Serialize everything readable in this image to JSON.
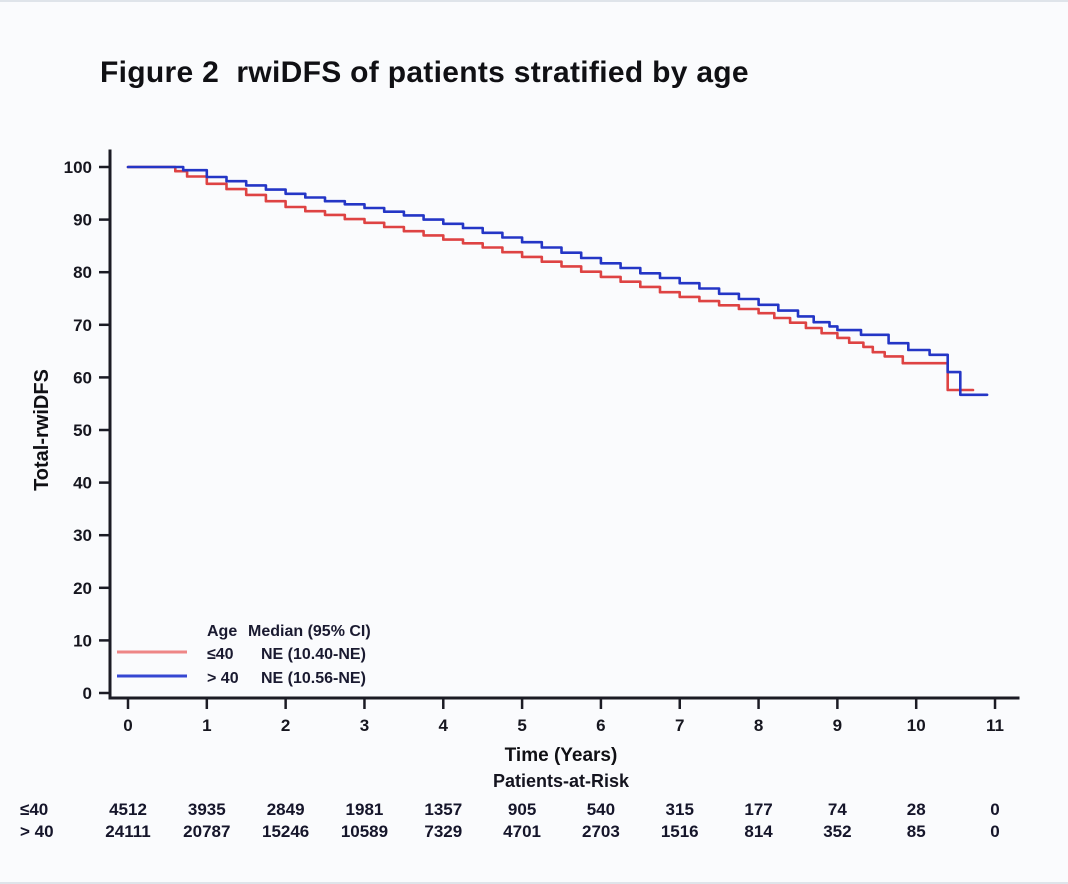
{
  "figure": {
    "title": "Figure 2  rwiDFS of patients stratified by age"
  },
  "chart_data": {
    "type": "line",
    "subtype": "kaplan-meier-step",
    "title": "Figure 2 rwiDFS of patients stratified by age",
    "xlabel": "Time (Years)",
    "ylabel": "Total-rwiDFS",
    "xlim": [
      0,
      11
    ],
    "ylim": [
      0,
      100
    ],
    "x_ticks": [
      0,
      1,
      2,
      3,
      4,
      5,
      6,
      7,
      8,
      9,
      10,
      11
    ],
    "y_ticks": [
      0,
      10,
      20,
      30,
      40,
      50,
      60,
      70,
      80,
      90,
      100
    ],
    "grid": false,
    "legend": {
      "position": "inside-bottom-left",
      "col1_header": "Age",
      "col2_header": "Median (95% CI)",
      "rows": [
        {
          "label": "≤40",
          "median": "NE (10.40-NE)",
          "swatch_color": "#ee8686"
        },
        {
          "label": "> 40",
          "median": "NE (10.56-NE)",
          "swatch_color": "#3547d2"
        }
      ]
    },
    "series": [
      {
        "id": "le40",
        "name": "≤40",
        "color": "#de4343",
        "points": [
          [
            0,
            100
          ],
          [
            0.5,
            100
          ],
          [
            0.6,
            99.2
          ],
          [
            0.75,
            98.2
          ],
          [
            1.0,
            96.8
          ],
          [
            1.25,
            95.8
          ],
          [
            1.5,
            94.7
          ],
          [
            1.75,
            93.5
          ],
          [
            2.0,
            92.4
          ],
          [
            2.25,
            91.6
          ],
          [
            2.5,
            90.9
          ],
          [
            2.75,
            90.1
          ],
          [
            3.0,
            89.4
          ],
          [
            3.25,
            88.6
          ],
          [
            3.5,
            87.8
          ],
          [
            3.75,
            87.0
          ],
          [
            4.0,
            86.2
          ],
          [
            4.25,
            85.5
          ],
          [
            4.5,
            84.7
          ],
          [
            4.75,
            83.8
          ],
          [
            5.0,
            82.9
          ],
          [
            5.25,
            82.0
          ],
          [
            5.5,
            81.1
          ],
          [
            5.75,
            80.1
          ],
          [
            6.0,
            79.1
          ],
          [
            6.25,
            78.2
          ],
          [
            6.5,
            77.2
          ],
          [
            6.75,
            76.2
          ],
          [
            7.0,
            75.3
          ],
          [
            7.25,
            74.5
          ],
          [
            7.5,
            73.7
          ],
          [
            7.75,
            73.0
          ],
          [
            8.0,
            72.2
          ],
          [
            8.2,
            71.3
          ],
          [
            8.4,
            70.4
          ],
          [
            8.6,
            69.4
          ],
          [
            8.8,
            68.4
          ],
          [
            9.0,
            67.5
          ],
          [
            9.15,
            66.6
          ],
          [
            9.33,
            65.8
          ],
          [
            9.45,
            64.8
          ],
          [
            9.6,
            64.0
          ],
          [
            9.83,
            62.7
          ],
          [
            10.4,
            57.6
          ],
          [
            10.72,
            57.6
          ]
        ]
      },
      {
        "id": "gt40",
        "name": "> 40",
        "color": "#2436c6",
        "points": [
          [
            0,
            100
          ],
          [
            0.55,
            100
          ],
          [
            0.7,
            99.4
          ],
          [
            1.0,
            98.1
          ],
          [
            1.25,
            97.3
          ],
          [
            1.5,
            96.5
          ],
          [
            1.75,
            95.7
          ],
          [
            2.0,
            94.9
          ],
          [
            2.25,
            94.2
          ],
          [
            2.5,
            93.5
          ],
          [
            2.75,
            92.9
          ],
          [
            3.0,
            92.2
          ],
          [
            3.25,
            91.5
          ],
          [
            3.5,
            90.8
          ],
          [
            3.75,
            90.0
          ],
          [
            4.0,
            89.2
          ],
          [
            4.25,
            88.4
          ],
          [
            4.5,
            87.5
          ],
          [
            4.75,
            86.6
          ],
          [
            5.0,
            85.7
          ],
          [
            5.25,
            84.7
          ],
          [
            5.5,
            83.7
          ],
          [
            5.75,
            82.7
          ],
          [
            6.0,
            81.7
          ],
          [
            6.25,
            80.8
          ],
          [
            6.5,
            79.8
          ],
          [
            6.75,
            78.9
          ],
          [
            7.0,
            77.9
          ],
          [
            7.25,
            76.9
          ],
          [
            7.5,
            75.9
          ],
          [
            7.75,
            74.9
          ],
          [
            8.0,
            73.8
          ],
          [
            8.25,
            72.7
          ],
          [
            8.5,
            71.6
          ],
          [
            8.7,
            70.5
          ],
          [
            8.9,
            69.7
          ],
          [
            9.0,
            69.0
          ],
          [
            9.3,
            68.1
          ],
          [
            9.65,
            66.5
          ],
          [
            9.9,
            65.2
          ],
          [
            10.17,
            64.3
          ],
          [
            10.4,
            61.0
          ],
          [
            10.56,
            56.7
          ],
          [
            10.9,
            56.7
          ]
        ]
      }
    ],
    "risk_table": {
      "header": "Patients-at-Risk",
      "time_points": [
        0,
        1,
        2,
        3,
        4,
        5,
        6,
        7,
        8,
        9,
        10,
        11
      ],
      "rows": [
        {
          "label": "≤40",
          "values": [
            "4512",
            "3935",
            "2849",
            "1981",
            "1357",
            "905",
            "540",
            "315",
            "177",
            "74",
            "28",
            "0"
          ]
        },
        {
          "label": "> 40",
          "values": [
            "24111",
            "20787",
            "15246",
            "10589",
            "7329",
            "4701",
            "2703",
            "1516",
            "814",
            "352",
            "85",
            "0"
          ]
        }
      ]
    }
  }
}
